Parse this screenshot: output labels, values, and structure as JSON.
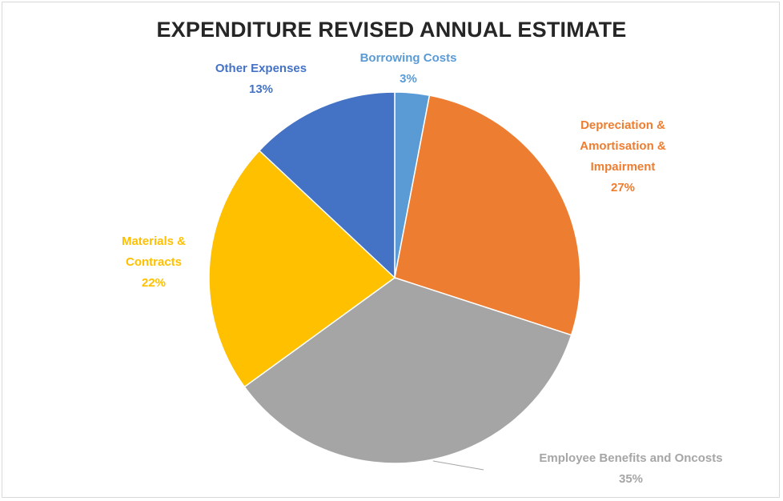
{
  "chart_data": {
    "type": "pie",
    "title": "EXPENDITURE REVISED ANNUAL ESTIMATE",
    "slices": [
      {
        "label_lines": [
          "Borrowing Costs"
        ],
        "percent_label": "3%",
        "value": 3,
        "color": "#5b9bd5"
      },
      {
        "label_lines": [
          "Depreciation &",
          "Amortisation &",
          "Impairment"
        ],
        "percent_label": "27%",
        "value": 27,
        "color": "#ed7d31"
      },
      {
        "label_lines": [
          "Employee Benefits and Oncosts"
        ],
        "percent_label": "35%",
        "value": 35,
        "color": "#a5a5a5"
      },
      {
        "label_lines": [
          "Materials &",
          "Contracts"
        ],
        "percent_label": "22%",
        "value": 22,
        "color": "#ffc000"
      },
      {
        "label_lines": [
          "Other Expenses"
        ],
        "percent_label": "13%",
        "value": 13,
        "color": "#4472c4"
      }
    ]
  }
}
